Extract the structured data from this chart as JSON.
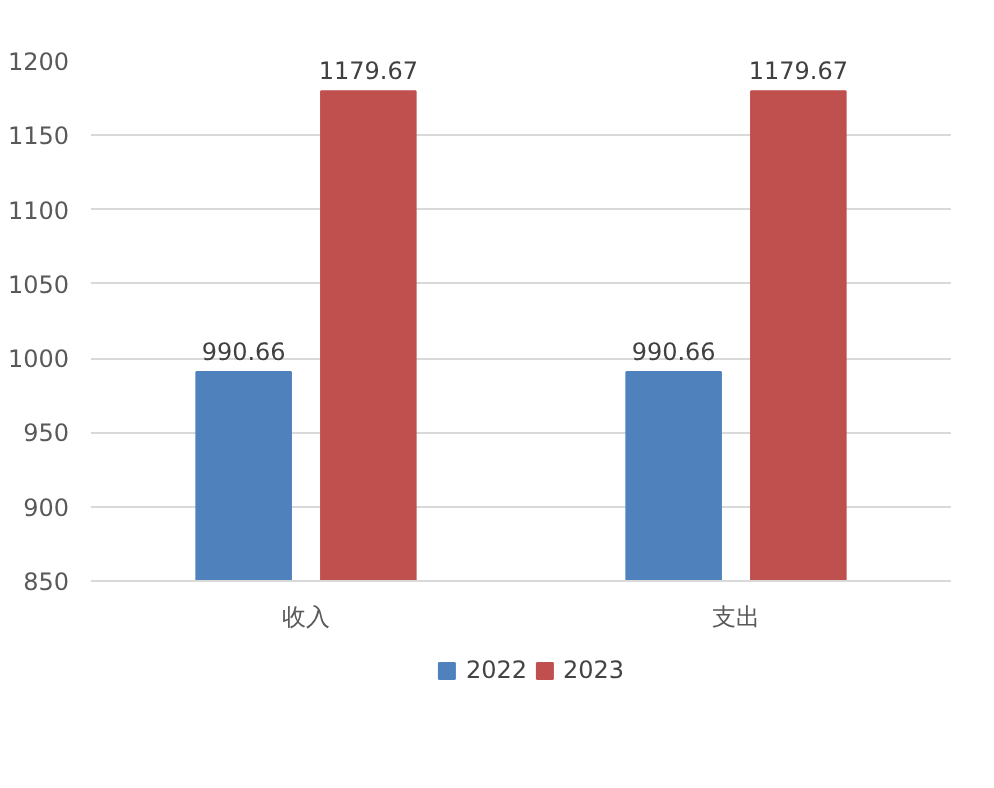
{
  "chart_data": {
    "type": "bar",
    "categories": [
      "收入",
      "支出"
    ],
    "series": [
      {
        "name": "2022",
        "color": "#4f81bd",
        "values": [
          990.66,
          990.66
        ]
      },
      {
        "name": "2023",
        "color": "#c0504d",
        "values": [
          1179.67,
          1179.67
        ]
      }
    ],
    "ylim": [
      850,
      1200
    ],
    "yticks": [
      850,
      900,
      950,
      1000,
      1050,
      1100,
      1150,
      1200
    ],
    "grid": "y",
    "legend": "bottom",
    "data_labels": true
  }
}
